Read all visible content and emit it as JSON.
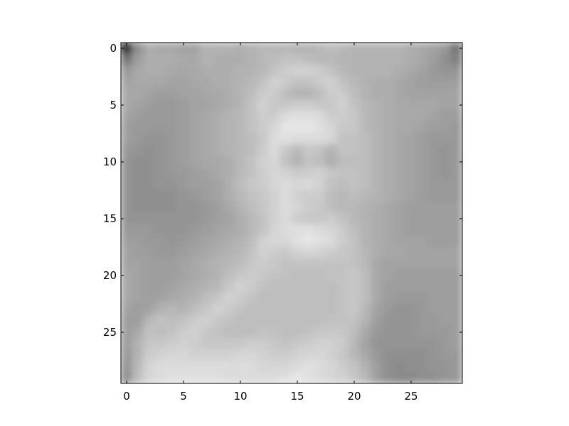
{
  "chart_data": {
    "type": "heatmap",
    "title": "",
    "xlabel": "",
    "ylabel": "",
    "colormap": "gray",
    "interpolation": "smooth",
    "grid": false,
    "legend": "none",
    "shape": [
      30,
      30
    ],
    "xlim": [
      -0.5,
      29.5
    ],
    "ylim": [
      29.5,
      -0.5
    ],
    "x_ticks": [
      0,
      5,
      10,
      15,
      20,
      25
    ],
    "x_tick_labels": [
      "0",
      "5",
      "10",
      "15",
      "20",
      "25"
    ],
    "y_ticks": [
      0,
      5,
      10,
      15,
      20,
      25
    ],
    "y_tick_labels": [
      "0",
      "5",
      "10",
      "15",
      "20",
      "25"
    ],
    "values": [
      [
        0.1,
        0.55,
        0.68,
        0.66,
        0.66,
        0.64,
        0.64,
        0.7,
        0.7,
        0.7,
        0.68,
        0.7,
        0.72,
        0.72,
        0.72,
        0.7,
        0.7,
        0.72,
        0.74,
        0.72,
        0.7,
        0.7,
        0.7,
        0.7,
        0.7,
        0.68,
        0.66,
        0.64,
        0.6,
        0.45
      ],
      [
        0.45,
        0.62,
        0.68,
        0.68,
        0.68,
        0.66,
        0.66,
        0.7,
        0.68,
        0.68,
        0.68,
        0.7,
        0.72,
        0.74,
        0.76,
        0.76,
        0.74,
        0.72,
        0.72,
        0.7,
        0.7,
        0.7,
        0.7,
        0.7,
        0.7,
        0.68,
        0.66,
        0.62,
        0.56,
        0.5
      ],
      [
        0.6,
        0.66,
        0.68,
        0.68,
        0.66,
        0.66,
        0.66,
        0.68,
        0.68,
        0.68,
        0.7,
        0.7,
        0.72,
        0.76,
        0.8,
        0.82,
        0.82,
        0.8,
        0.76,
        0.72,
        0.7,
        0.7,
        0.7,
        0.7,
        0.68,
        0.66,
        0.64,
        0.6,
        0.58,
        0.58
      ],
      [
        0.64,
        0.66,
        0.66,
        0.66,
        0.64,
        0.64,
        0.66,
        0.66,
        0.68,
        0.68,
        0.7,
        0.72,
        0.76,
        0.82,
        0.8,
        0.76,
        0.76,
        0.8,
        0.82,
        0.76,
        0.72,
        0.7,
        0.68,
        0.68,
        0.66,
        0.64,
        0.62,
        0.62,
        0.62,
        0.62
      ],
      [
        0.66,
        0.66,
        0.64,
        0.62,
        0.62,
        0.64,
        0.64,
        0.66,
        0.66,
        0.68,
        0.7,
        0.74,
        0.8,
        0.8,
        0.74,
        0.7,
        0.7,
        0.74,
        0.8,
        0.8,
        0.74,
        0.7,
        0.68,
        0.68,
        0.66,
        0.64,
        0.64,
        0.64,
        0.64,
        0.64
      ],
      [
        0.66,
        0.64,
        0.62,
        0.6,
        0.6,
        0.62,
        0.64,
        0.64,
        0.66,
        0.68,
        0.7,
        0.76,
        0.82,
        0.78,
        0.78,
        0.8,
        0.8,
        0.78,
        0.78,
        0.82,
        0.76,
        0.72,
        0.7,
        0.68,
        0.66,
        0.66,
        0.66,
        0.66,
        0.64,
        0.64
      ],
      [
        0.64,
        0.62,
        0.6,
        0.6,
        0.6,
        0.62,
        0.64,
        0.66,
        0.68,
        0.7,
        0.72,
        0.76,
        0.8,
        0.8,
        0.86,
        0.88,
        0.88,
        0.86,
        0.8,
        0.8,
        0.78,
        0.72,
        0.7,
        0.68,
        0.66,
        0.66,
        0.66,
        0.64,
        0.62,
        0.62
      ],
      [
        0.62,
        0.6,
        0.6,
        0.6,
        0.6,
        0.62,
        0.64,
        0.66,
        0.68,
        0.7,
        0.72,
        0.76,
        0.8,
        0.84,
        0.9,
        0.9,
        0.9,
        0.88,
        0.84,
        0.78,
        0.78,
        0.72,
        0.7,
        0.68,
        0.66,
        0.66,
        0.64,
        0.62,
        0.62,
        0.6
      ],
      [
        0.62,
        0.6,
        0.58,
        0.58,
        0.6,
        0.62,
        0.64,
        0.66,
        0.68,
        0.7,
        0.72,
        0.74,
        0.78,
        0.86,
        0.88,
        0.86,
        0.86,
        0.86,
        0.84,
        0.76,
        0.76,
        0.74,
        0.7,
        0.68,
        0.66,
        0.64,
        0.62,
        0.6,
        0.6,
        0.6
      ],
      [
        0.6,
        0.58,
        0.56,
        0.58,
        0.6,
        0.62,
        0.64,
        0.66,
        0.68,
        0.7,
        0.72,
        0.74,
        0.8,
        0.86,
        0.78,
        0.72,
        0.78,
        0.76,
        0.7,
        0.76,
        0.76,
        0.74,
        0.7,
        0.68,
        0.66,
        0.64,
        0.62,
        0.6,
        0.58,
        0.6
      ],
      [
        0.58,
        0.56,
        0.56,
        0.58,
        0.6,
        0.62,
        0.64,
        0.66,
        0.66,
        0.68,
        0.72,
        0.76,
        0.82,
        0.84,
        0.76,
        0.7,
        0.76,
        0.74,
        0.68,
        0.74,
        0.74,
        0.74,
        0.7,
        0.68,
        0.66,
        0.64,
        0.62,
        0.6,
        0.58,
        0.6
      ],
      [
        0.58,
        0.56,
        0.56,
        0.58,
        0.6,
        0.6,
        0.62,
        0.64,
        0.66,
        0.68,
        0.72,
        0.76,
        0.8,
        0.84,
        0.82,
        0.8,
        0.8,
        0.82,
        0.78,
        0.76,
        0.76,
        0.74,
        0.7,
        0.68,
        0.66,
        0.64,
        0.62,
        0.6,
        0.58,
        0.6
      ],
      [
        0.58,
        0.56,
        0.56,
        0.58,
        0.58,
        0.6,
        0.62,
        0.62,
        0.64,
        0.68,
        0.74,
        0.78,
        0.8,
        0.84,
        0.86,
        0.84,
        0.86,
        0.82,
        0.76,
        0.74,
        0.76,
        0.74,
        0.7,
        0.68,
        0.66,
        0.64,
        0.62,
        0.6,
        0.6,
        0.6
      ],
      [
        0.58,
        0.56,
        0.56,
        0.56,
        0.56,
        0.58,
        0.6,
        0.62,
        0.64,
        0.68,
        0.72,
        0.76,
        0.78,
        0.82,
        0.86,
        0.82,
        0.8,
        0.8,
        0.74,
        0.72,
        0.74,
        0.72,
        0.7,
        0.68,
        0.66,
        0.64,
        0.62,
        0.6,
        0.6,
        0.6
      ],
      [
        0.58,
        0.56,
        0.56,
        0.56,
        0.56,
        0.58,
        0.58,
        0.6,
        0.62,
        0.66,
        0.7,
        0.74,
        0.78,
        0.82,
        0.86,
        0.84,
        0.8,
        0.78,
        0.74,
        0.72,
        0.72,
        0.7,
        0.68,
        0.66,
        0.64,
        0.62,
        0.62,
        0.62,
        0.62,
        0.62
      ],
      [
        0.58,
        0.58,
        0.58,
        0.58,
        0.58,
        0.58,
        0.58,
        0.6,
        0.62,
        0.64,
        0.68,
        0.72,
        0.76,
        0.82,
        0.86,
        0.8,
        0.78,
        0.78,
        0.8,
        0.76,
        0.72,
        0.7,
        0.68,
        0.66,
        0.64,
        0.62,
        0.62,
        0.62,
        0.62,
        0.62
      ],
      [
        0.6,
        0.6,
        0.6,
        0.58,
        0.58,
        0.58,
        0.6,
        0.62,
        0.64,
        0.66,
        0.68,
        0.72,
        0.76,
        0.84,
        0.86,
        0.88,
        0.88,
        0.86,
        0.84,
        0.8,
        0.74,
        0.7,
        0.68,
        0.66,
        0.64,
        0.62,
        0.62,
        0.62,
        0.62,
        0.62
      ],
      [
        0.62,
        0.62,
        0.6,
        0.6,
        0.58,
        0.6,
        0.62,
        0.64,
        0.66,
        0.68,
        0.7,
        0.74,
        0.82,
        0.84,
        0.84,
        0.88,
        0.9,
        0.88,
        0.86,
        0.8,
        0.76,
        0.7,
        0.68,
        0.66,
        0.64,
        0.64,
        0.64,
        0.62,
        0.62,
        0.62
      ],
      [
        0.64,
        0.62,
        0.62,
        0.6,
        0.6,
        0.62,
        0.64,
        0.66,
        0.68,
        0.7,
        0.72,
        0.76,
        0.82,
        0.8,
        0.78,
        0.82,
        0.84,
        0.82,
        0.8,
        0.78,
        0.76,
        0.72,
        0.68,
        0.66,
        0.66,
        0.64,
        0.64,
        0.64,
        0.64,
        0.64
      ],
      [
        0.64,
        0.64,
        0.62,
        0.62,
        0.62,
        0.64,
        0.66,
        0.68,
        0.7,
        0.72,
        0.74,
        0.78,
        0.8,
        0.78,
        0.76,
        0.76,
        0.76,
        0.76,
        0.76,
        0.76,
        0.76,
        0.72,
        0.66,
        0.64,
        0.64,
        0.64,
        0.64,
        0.64,
        0.64,
        0.64
      ],
      [
        0.66,
        0.64,
        0.62,
        0.62,
        0.62,
        0.64,
        0.66,
        0.68,
        0.7,
        0.74,
        0.78,
        0.8,
        0.78,
        0.76,
        0.76,
        0.74,
        0.74,
        0.74,
        0.76,
        0.76,
        0.78,
        0.74,
        0.66,
        0.64,
        0.62,
        0.62,
        0.62,
        0.62,
        0.62,
        0.62
      ],
      [
        0.66,
        0.64,
        0.62,
        0.62,
        0.64,
        0.66,
        0.68,
        0.7,
        0.72,
        0.78,
        0.82,
        0.8,
        0.76,
        0.74,
        0.74,
        0.74,
        0.74,
        0.74,
        0.74,
        0.76,
        0.78,
        0.74,
        0.66,
        0.62,
        0.62,
        0.62,
        0.62,
        0.62,
        0.62,
        0.62
      ],
      [
        0.66,
        0.64,
        0.62,
        0.64,
        0.66,
        0.68,
        0.7,
        0.74,
        0.78,
        0.82,
        0.8,
        0.76,
        0.74,
        0.74,
        0.74,
        0.74,
        0.74,
        0.74,
        0.74,
        0.76,
        0.78,
        0.74,
        0.66,
        0.62,
        0.6,
        0.6,
        0.6,
        0.62,
        0.62,
        0.62
      ],
      [
        0.64,
        0.62,
        0.64,
        0.7,
        0.72,
        0.7,
        0.74,
        0.78,
        0.82,
        0.8,
        0.76,
        0.74,
        0.74,
        0.74,
        0.74,
        0.74,
        0.74,
        0.74,
        0.74,
        0.76,
        0.78,
        0.72,
        0.64,
        0.6,
        0.58,
        0.58,
        0.6,
        0.62,
        0.62,
        0.62
      ],
      [
        0.62,
        0.62,
        0.72,
        0.76,
        0.74,
        0.76,
        0.8,
        0.82,
        0.78,
        0.76,
        0.74,
        0.74,
        0.74,
        0.74,
        0.74,
        0.74,
        0.74,
        0.74,
        0.76,
        0.76,
        0.76,
        0.7,
        0.62,
        0.58,
        0.58,
        0.58,
        0.6,
        0.6,
        0.62,
        0.62
      ],
      [
        0.62,
        0.66,
        0.76,
        0.74,
        0.76,
        0.8,
        0.82,
        0.78,
        0.76,
        0.74,
        0.74,
        0.74,
        0.76,
        0.76,
        0.74,
        0.74,
        0.76,
        0.78,
        0.78,
        0.78,
        0.74,
        0.66,
        0.6,
        0.58,
        0.58,
        0.58,
        0.6,
        0.6,
        0.6,
        0.62
      ],
      [
        0.62,
        0.7,
        0.78,
        0.78,
        0.8,
        0.82,
        0.8,
        0.78,
        0.78,
        0.78,
        0.78,
        0.8,
        0.8,
        0.78,
        0.76,
        0.78,
        0.8,
        0.82,
        0.82,
        0.8,
        0.72,
        0.64,
        0.58,
        0.58,
        0.58,
        0.58,
        0.58,
        0.58,
        0.6,
        0.62
      ],
      [
        0.6,
        0.7,
        0.8,
        0.82,
        0.84,
        0.84,
        0.82,
        0.82,
        0.82,
        0.82,
        0.84,
        0.84,
        0.82,
        0.8,
        0.8,
        0.82,
        0.84,
        0.84,
        0.82,
        0.78,
        0.72,
        0.66,
        0.6,
        0.56,
        0.56,
        0.56,
        0.56,
        0.58,
        0.6,
        0.6
      ],
      [
        0.58,
        0.72,
        0.84,
        0.86,
        0.86,
        0.86,
        0.86,
        0.86,
        0.86,
        0.86,
        0.86,
        0.86,
        0.84,
        0.84,
        0.84,
        0.86,
        0.88,
        0.86,
        0.84,
        0.8,
        0.76,
        0.7,
        0.62,
        0.56,
        0.54,
        0.56,
        0.56,
        0.58,
        0.58,
        0.6
      ],
      [
        0.56,
        0.74,
        0.84,
        0.86,
        0.88,
        0.88,
        0.88,
        0.88,
        0.88,
        0.86,
        0.86,
        0.86,
        0.86,
        0.86,
        0.88,
        0.9,
        0.88,
        0.86,
        0.84,
        0.82,
        0.78,
        0.72,
        0.62,
        0.56,
        0.54,
        0.54,
        0.56,
        0.56,
        0.58,
        0.6
      ]
    ]
  }
}
